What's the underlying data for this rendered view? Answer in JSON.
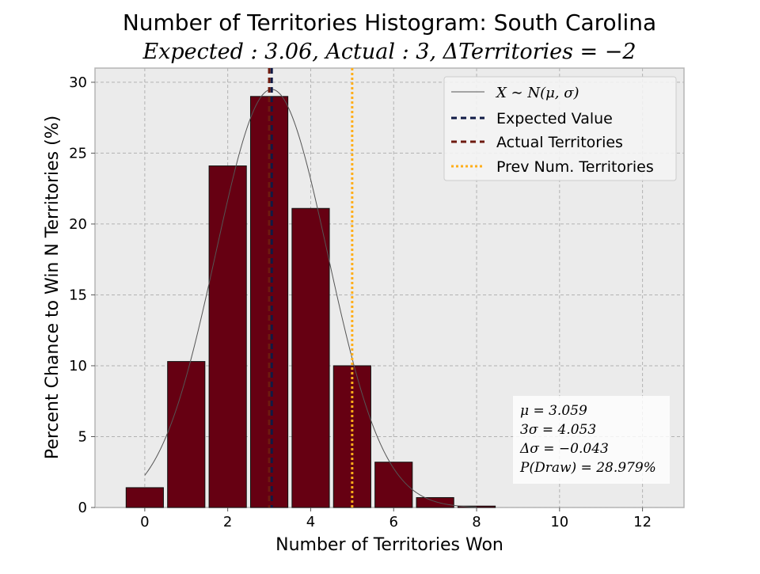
{
  "chart_data": {
    "type": "bar",
    "title": "Number of Territories Histogram: South Carolina",
    "subtitle": "Expected : 3.06, Actual : 3, ΔTerritories = −2",
    "xlabel": "Number of Territories Won",
    "ylabel": "Percent Chance to Win N Territories (%)",
    "xlim": [
      -1.2,
      13.0
    ],
    "ylim": [
      0,
      31
    ],
    "xticks": [
      0,
      2,
      4,
      6,
      8,
      10,
      12
    ],
    "yticks": [
      0,
      5,
      10,
      15,
      20,
      25,
      30
    ],
    "grid": true,
    "x": [
      0,
      1,
      2,
      3,
      4,
      5,
      6,
      7,
      8
    ],
    "values": [
      1.4,
      10.3,
      24.1,
      29.0,
      21.1,
      10.0,
      3.2,
      0.7,
      0.1
    ],
    "bar_color": "#660012",
    "normal_fit": {
      "mu": 3.059,
      "sigma": 1.351,
      "peak": 29.5,
      "color": "#555555"
    },
    "vlines": [
      {
        "name": "Expected Value",
        "x": 3.06,
        "color": "#0f1a45",
        "style": "dashed"
      },
      {
        "name": "Actual Territories",
        "x": 3.0,
        "color": "#6e1a0f",
        "style": "dashed"
      },
      {
        "name": "Prev Num. Territories",
        "x": 5.0,
        "color": "#ffae1a",
        "style": "dotted"
      }
    ],
    "legend": {
      "position": "top-right",
      "entries": [
        {
          "label": "X ∼ N(μ, σ)",
          "color": "#555555",
          "style": "thin",
          "math": true
        },
        {
          "label": "Expected Value",
          "color": "#0f1a45",
          "style": "dashed"
        },
        {
          "label": "Actual Territories",
          "color": "#6e1a0f",
          "style": "dashed"
        },
        {
          "label": "Prev Num. Territories",
          "color": "#ffae1a",
          "style": "dotted"
        }
      ]
    },
    "stats_box": {
      "position": "bottom-right",
      "lines": [
        "μ = 3.059",
        "3σ = 4.053",
        "Δσ = −0.043",
        "P(Draw) = 28.979%"
      ]
    }
  }
}
